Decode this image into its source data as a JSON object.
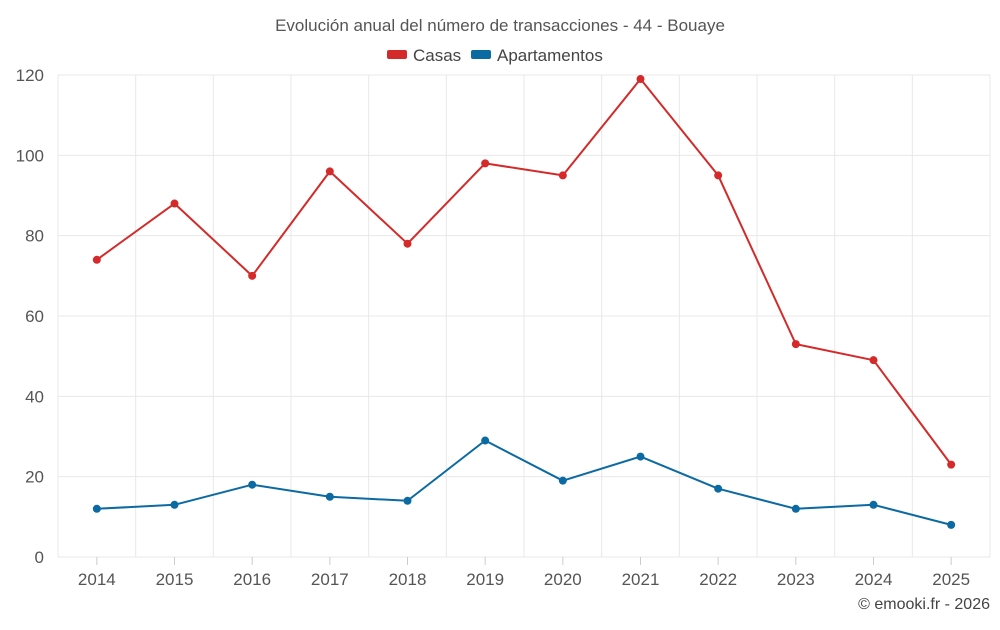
{
  "chart_data": {
    "type": "line",
    "title": "Evolución anual del número de transacciones - 44 - Bouaye",
    "categories": [
      "2014",
      "2015",
      "2016",
      "2017",
      "2018",
      "2019",
      "2020",
      "2021",
      "2022",
      "2023",
      "2024",
      "2025"
    ],
    "series": [
      {
        "name": "Casas",
        "color": "#d42a2a",
        "values": [
          74,
          88,
          70,
          96,
          78,
          98,
          95,
          119,
          95,
          53,
          49,
          23
        ]
      },
      {
        "name": "Apartamentos",
        "color": "#0b6aa2",
        "values": [
          12,
          13,
          18,
          15,
          14,
          29,
          19,
          25,
          17,
          12,
          13,
          8
        ]
      }
    ],
    "ylim": [
      0,
      120
    ],
    "yticks": [
      "0",
      "20",
      "40",
      "60",
      "80",
      "100",
      "120"
    ],
    "grid": true,
    "legend_position": "top-center"
  },
  "credit": "© emooki.fr - 2026"
}
